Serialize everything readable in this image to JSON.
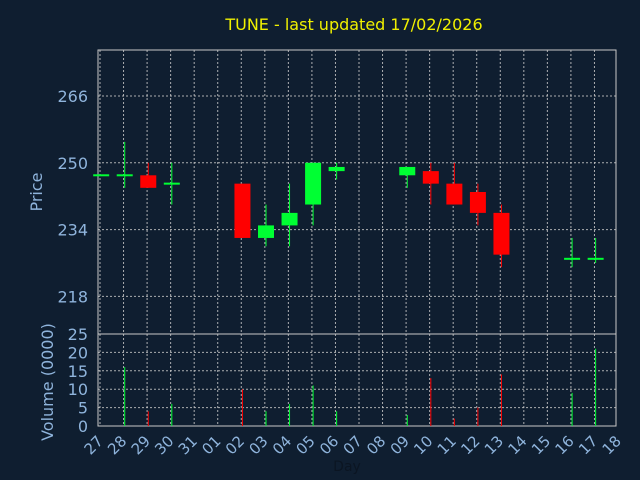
{
  "chart_data": {
    "type": "candlestick",
    "title": "TUNE - last updated 17/02/2026",
    "ylabel": "Price",
    "volume_label": "Volume (0000)",
    "xlabel": "Day",
    "price_ticks": [
      "266",
      "250",
      "234",
      "218"
    ],
    "volume_ticks": [
      "25",
      "20",
      "15",
      "10",
      "5",
      "0"
    ],
    "ylim": [
      209,
      277
    ],
    "volume_ylim": [
      0,
      25
    ],
    "x_ticks": [
      "27",
      "28",
      "29",
      "30",
      "31",
      "01",
      "02",
      "03",
      "04",
      "05",
      "06",
      "07",
      "08",
      "09",
      "10",
      "11",
      "12",
      "13",
      "14",
      "15",
      "16",
      "17",
      "18"
    ],
    "grid": true,
    "colors": {
      "background": "#0f1e30",
      "plot_border": "#c8c8c8",
      "grid": "#c8c8c8",
      "up": "#00ff33",
      "down": "#ff0000",
      "title": "#f0f000",
      "axis_text": "#8fb4dc"
    },
    "candles": [
      {
        "day": "27",
        "open": 247,
        "high": 247,
        "low": 247,
        "close": 247,
        "volume": 0
      },
      {
        "day": "28",
        "open": 247,
        "high": 255,
        "low": 244,
        "close": 247,
        "volume": 16
      },
      {
        "day": "29",
        "open": 247,
        "high": 250,
        "low": 244,
        "close": 244,
        "volume": 4
      },
      {
        "day": "30",
        "open": 245,
        "high": 250,
        "low": 240,
        "close": 245,
        "volume": 6
      },
      {
        "day": "02",
        "open": 245,
        "high": 245,
        "low": 232,
        "close": 232,
        "volume": 10
      },
      {
        "day": "03",
        "open": 232,
        "high": 240,
        "low": 230,
        "close": 235,
        "volume": 4
      },
      {
        "day": "04",
        "open": 235,
        "high": 245,
        "low": 230,
        "close": 238,
        "volume": 6
      },
      {
        "day": "05",
        "open": 240,
        "high": 250,
        "low": 235,
        "close": 250,
        "volume": 11
      },
      {
        "day": "06",
        "open": 248,
        "high": 250,
        "low": 246,
        "close": 249,
        "volume": 4
      },
      {
        "day": "09",
        "open": 247,
        "high": 249,
        "low": 244,
        "close": 249,
        "volume": 3
      },
      {
        "day": "10",
        "open": 248,
        "high": 250,
        "low": 240,
        "close": 245,
        "volume": 13
      },
      {
        "day": "11",
        "open": 245,
        "high": 250,
        "low": 240,
        "close": 240,
        "volume": 2
      },
      {
        "day": "12",
        "open": 243,
        "high": 245,
        "low": 235,
        "close": 238,
        "volume": 5
      },
      {
        "day": "13",
        "open": 238,
        "high": 240,
        "low": 225,
        "close": 228,
        "volume": 14
      },
      {
        "day": "16",
        "open": 227,
        "high": 232,
        "low": 225,
        "close": 227,
        "volume": 9
      },
      {
        "day": "17",
        "open": 227,
        "high": 232,
        "low": 226,
        "close": 227,
        "volume": 21
      }
    ]
  }
}
